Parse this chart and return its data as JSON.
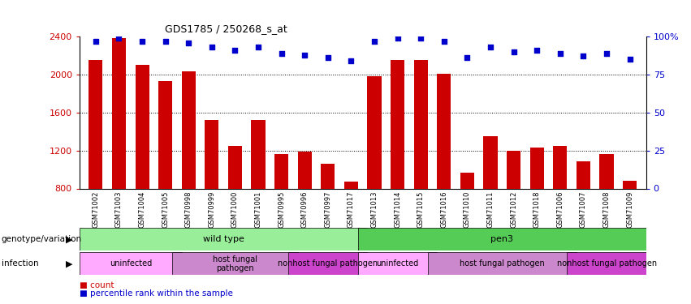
{
  "title": "GDS1785 / 250268_s_at",
  "samples": [
    "GSM71002",
    "GSM71003",
    "GSM71004",
    "GSM71005",
    "GSM70998",
    "GSM70999",
    "GSM71000",
    "GSM71001",
    "GSM70995",
    "GSM70996",
    "GSM70997",
    "GSM71017",
    "GSM71013",
    "GSM71014",
    "GSM71015",
    "GSM71016",
    "GSM71010",
    "GSM71011",
    "GSM71012",
    "GSM71018",
    "GSM71006",
    "GSM71007",
    "GSM71008",
    "GSM71009"
  ],
  "counts": [
    2150,
    2380,
    2100,
    1930,
    2030,
    1520,
    1250,
    1520,
    1160,
    1190,
    1060,
    870,
    1980,
    2150,
    2150,
    2010,
    970,
    1350,
    1200,
    1230,
    1250,
    1090,
    1160,
    880
  ],
  "percentile": [
    97,
    99,
    97,
    97,
    96,
    93,
    91,
    93,
    89,
    88,
    86,
    84,
    97,
    99,
    99,
    97,
    86,
    93,
    90,
    91,
    89,
    87,
    89,
    85
  ],
  "ylim_left": [
    800,
    2400
  ],
  "ylim_right": [
    0,
    100
  ],
  "yticks_left": [
    800,
    1200,
    1600,
    2000,
    2400
  ],
  "yticks_right": [
    0,
    25,
    50,
    75,
    100
  ],
  "bar_color": "#cc0000",
  "dot_color": "#0000cc",
  "bg_color": "#ffffff",
  "genotype_groups": [
    {
      "label": "wild type",
      "start": 0,
      "end": 12,
      "color": "#99ee99"
    },
    {
      "label": "pen3",
      "start": 12,
      "end": 24,
      "color": "#55cc55"
    }
  ],
  "infection_groups": [
    {
      "label": "uninfected",
      "start": 0,
      "end": 4,
      "color": "#ffaaff"
    },
    {
      "label": "host fungal\npathogen",
      "start": 4,
      "end": 9,
      "color": "#cc88cc"
    },
    {
      "label": "nonhost fungal pathogen",
      "start": 9,
      "end": 12,
      "color": "#cc44cc"
    },
    {
      "label": "uninfected",
      "start": 12,
      "end": 15,
      "color": "#ffaaff"
    },
    {
      "label": "host fungal pathogen",
      "start": 15,
      "end": 21,
      "color": "#cc88cc"
    },
    {
      "label": "nonhost fungal pathogen",
      "start": 21,
      "end": 24,
      "color": "#cc44cc"
    }
  ],
  "legend_labels": [
    "count",
    "percentile rank within the sample"
  ],
  "legend_colors": [
    "#cc0000",
    "#0000cc"
  ],
  "left_label_color": "#cc0000",
  "right_label_color": "#0000cc"
}
